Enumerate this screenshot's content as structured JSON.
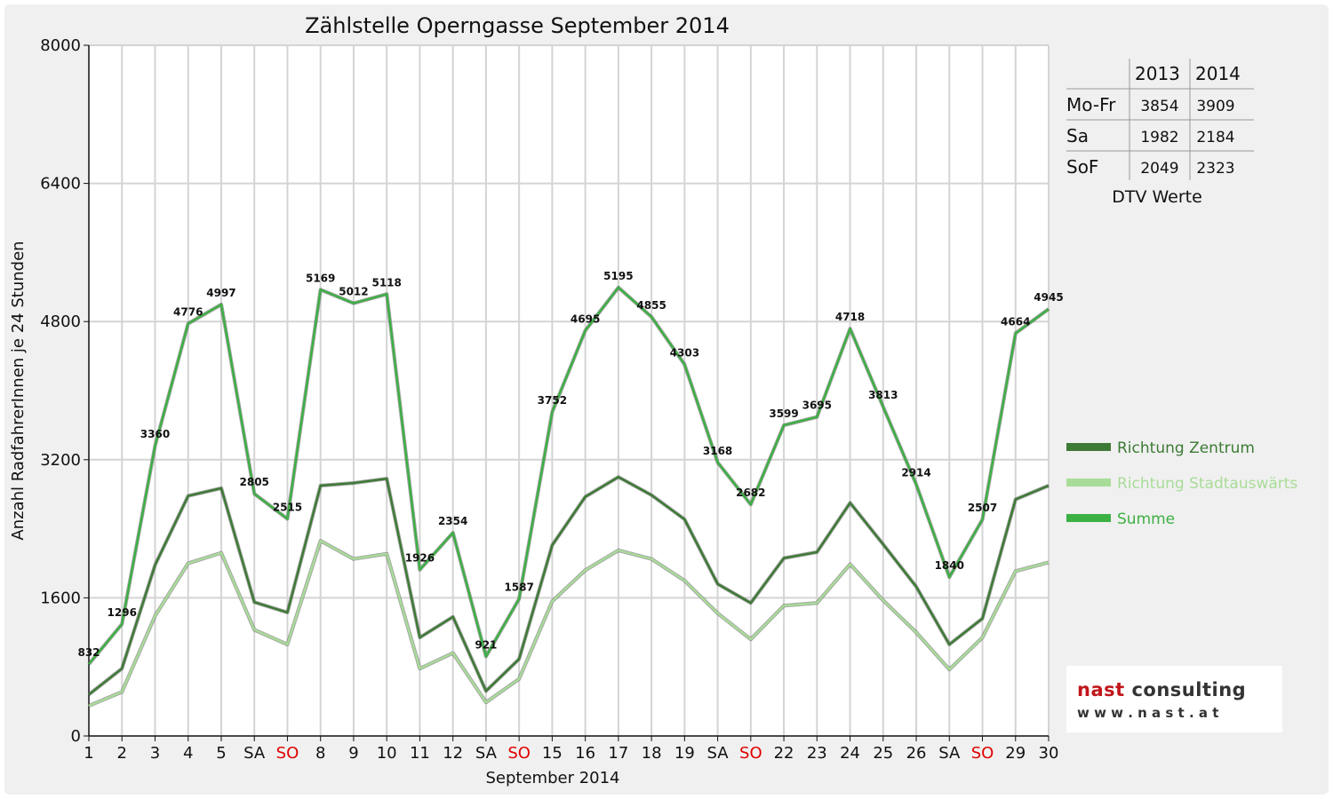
{
  "chart_data": {
    "type": "line",
    "title": "Zählstelle Operngasse September 2014",
    "xlabel": "September 2014",
    "ylabel": "Anzahl RadfahrerInnen je 24 Stunden",
    "ylim": [
      0,
      8000
    ],
    "yticks": [
      "0",
      "1600",
      "3200",
      "4800",
      "6400",
      "8000"
    ],
    "grid": true,
    "legend_position": "right",
    "categories": [
      "1",
      "2",
      "3",
      "4",
      "5",
      "SA",
      "SO",
      "8",
      "9",
      "10",
      "11",
      "12",
      "SA",
      "SO",
      "15",
      "16",
      "17",
      "18",
      "19",
      "SA",
      "SO",
      "22",
      "23",
      "24",
      "25",
      "26",
      "SA",
      "SO",
      "29",
      "30"
    ],
    "weekend_color": "#e00000",
    "series": [
      {
        "name": "Richtung Zentrum",
        "color": "#3d7a35",
        "values": [
          480,
          780,
          1980,
          2780,
          2870,
          1550,
          1430,
          2900,
          2930,
          2980,
          1140,
          1380,
          520,
          890,
          2210,
          2770,
          3000,
          2790,
          2510,
          1760,
          1540,
          2060,
          2130,
          2700,
          2220,
          1730,
          1060,
          1360,
          2740,
          2900
        ]
      },
      {
        "name": "Richtung Stadtauswärts",
        "color": "#a8dc98",
        "values": [
          350,
          510,
          1390,
          2000,
          2120,
          1230,
          1060,
          2260,
          2050,
          2110,
          780,
          960,
          390,
          660,
          1560,
          1920,
          2150,
          2050,
          1800,
          1420,
          1120,
          1510,
          1540,
          1990,
          1570,
          1200,
          770,
          1140,
          1910,
          2010
        ]
      },
      {
        "name": "Summe",
        "color": "#3cb043",
        "values": [
          832,
          1296,
          3360,
          4776,
          4997,
          2805,
          2515,
          5169,
          5012,
          5118,
          1926,
          2354,
          921,
          1587,
          3752,
          4695,
          5195,
          4855,
          4303,
          3168,
          2682,
          3599,
          3695,
          4718,
          3813,
          2914,
          1840,
          2507,
          4664,
          4945
        ]
      }
    ],
    "data_labels": [
      "832",
      "1296",
      "3360",
      "4776",
      "4997",
      "2805",
      "2515",
      "5169",
      "5012",
      "5118",
      "1926",
      "2354",
      "921",
      "1587",
      "3752",
      "4695",
      "5195",
      "4855",
      "4303",
      "3168",
      "2682",
      "3599",
      "3695",
      "4718",
      "3813",
      "2914",
      "1840",
      "2507",
      "4664",
      "4945"
    ]
  },
  "dtv_table": {
    "caption": "DTV Werte",
    "columns": [
      "",
      "2013",
      "2014"
    ],
    "rows": [
      {
        "label": "Mo-Fr",
        "v2013": "3854",
        "v2014": "3909"
      },
      {
        "label": "Sa",
        "v2013": "1982",
        "v2014": "2184"
      },
      {
        "label": "SoF",
        "v2013": "2049",
        "v2014": "2323"
      }
    ]
  },
  "logo": {
    "company_a": "nast",
    "company_b": " consulting",
    "url": "w w w . n a s t . a t",
    "accent_color": "#c0161b"
  }
}
